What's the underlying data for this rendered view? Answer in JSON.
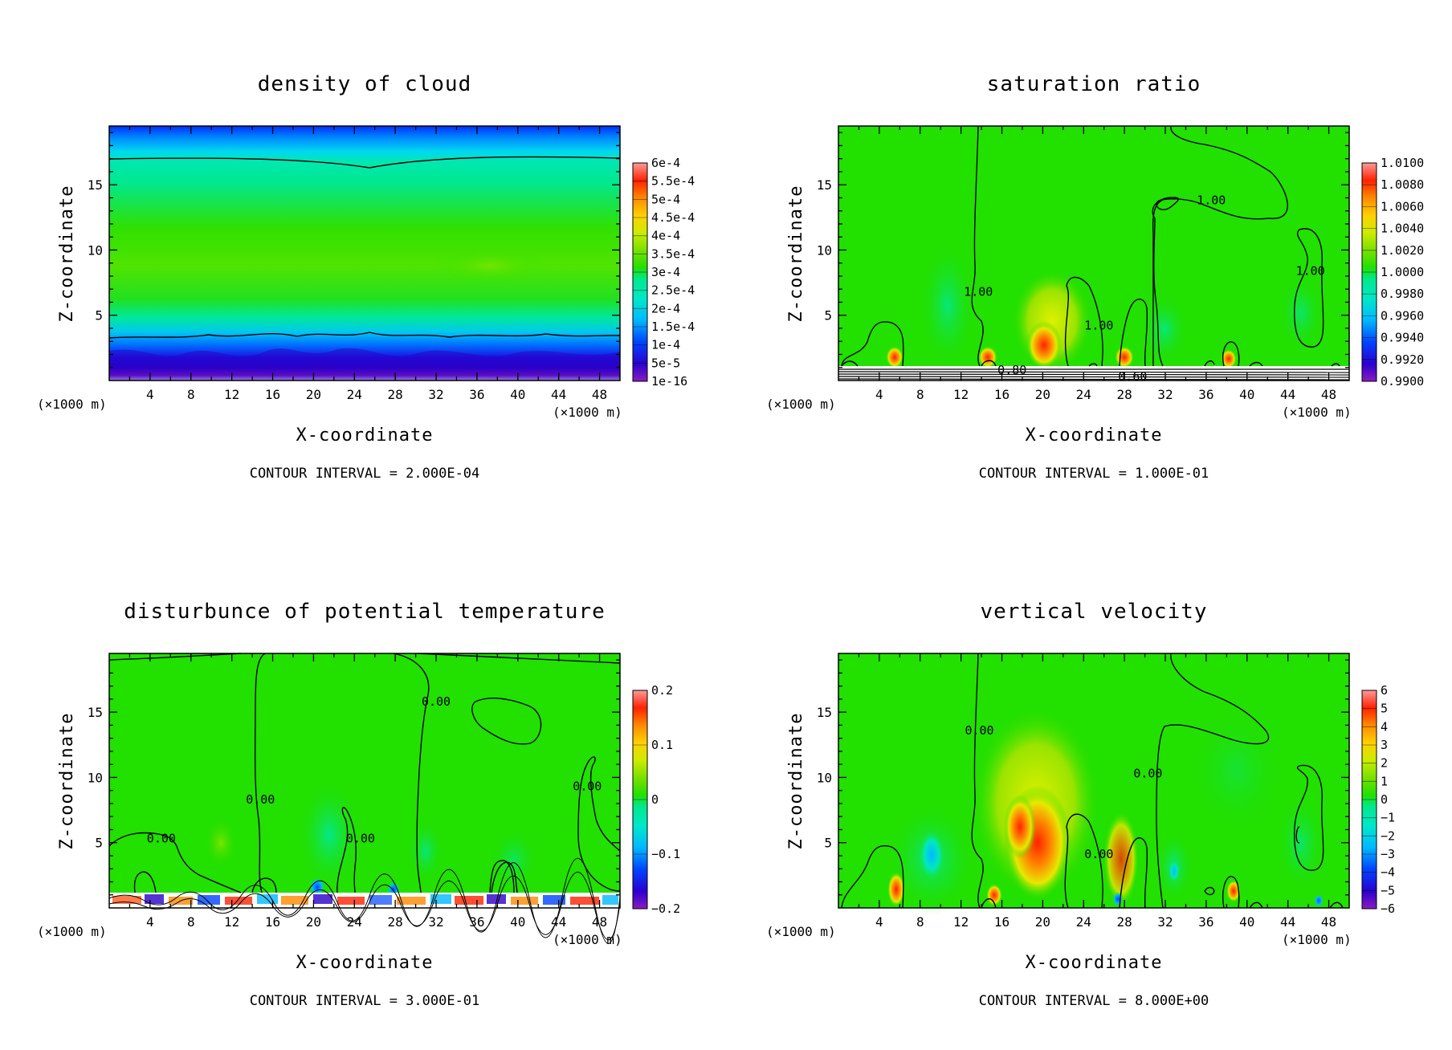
{
  "chart_data": [
    {
      "type": "heatmap",
      "title": "density of cloud",
      "xlabel": "X-coordinate",
      "ylabel": "Z-coordinate",
      "x_unit": "(×1000 m)",
      "z_unit": "(×1000 m)",
      "x_ticks": [
        "4",
        "8",
        "12",
        "16",
        "20",
        "24",
        "28",
        "32",
        "36",
        "40",
        "44",
        "48"
      ],
      "x_tick_values": [
        4,
        8,
        12,
        16,
        20,
        24,
        28,
        32,
        36,
        40,
        44,
        48
      ],
      "z_ticks": [
        "5",
        "10",
        "15"
      ],
      "z_tick_values": [
        5,
        10,
        15
      ],
      "xlim": [
        0,
        50
      ],
      "zlim": [
        0,
        19.5
      ],
      "contour_interval": "CONTOUR INTERVAL = 2.000E-04",
      "colorbar_labels": [
        "6e-4",
        "5.5e-4",
        "5e-4",
        "4.5e-4",
        "4e-4",
        "3.5e-4",
        "3e-4",
        "2.5e-4",
        "2e-4",
        "1.5e-4",
        "1e-4",
        "5e-5",
        "1e-16"
      ],
      "contour_labels": []
    },
    {
      "type": "heatmap",
      "title": "saturation ratio",
      "xlabel": "X-coordinate",
      "ylabel": "Z-coordinate",
      "x_unit": "(×1000 m)",
      "z_unit": "(×1000 m)",
      "x_ticks": [
        "4",
        "8",
        "12",
        "16",
        "20",
        "24",
        "28",
        "32",
        "36",
        "40",
        "44",
        "48"
      ],
      "x_tick_values": [
        4,
        8,
        12,
        16,
        20,
        24,
        28,
        32,
        36,
        40,
        44,
        48
      ],
      "z_ticks": [
        "5",
        "10",
        "15"
      ],
      "z_tick_values": [
        5,
        10,
        15
      ],
      "xlim": [
        0,
        50
      ],
      "zlim": [
        0,
        19.5
      ],
      "contour_interval": "CONTOUR INTERVAL = 1.000E-01",
      "colorbar_labels": [
        "1.0100",
        "1.0080",
        "1.0060",
        "1.0040",
        "1.0020",
        "1.0000",
        "0.9980",
        "0.9960",
        "0.9940",
        "0.9920",
        "0.9900"
      ],
      "contour_labels": [
        {
          "text": "1.00",
          "x": 36.5,
          "z": 13.5
        },
        {
          "text": "1.00",
          "x": 13.7,
          "z": 6.5
        },
        {
          "text": "1.00",
          "x": 25.5,
          "z": 3.9
        },
        {
          "text": "1.00",
          "x": 46.2,
          "z": 8.1
        },
        {
          "text": "0.80",
          "x": 17.0,
          "z": 0.5
        },
        {
          "text": "0.60",
          "x": 28.8,
          "z": 0.0
        }
      ]
    },
    {
      "type": "heatmap",
      "title": "disturbunce of potential temperature",
      "xlabel": "X-coordinate",
      "ylabel": "Z-coordinate",
      "x_unit": "(×1000 m)",
      "z_unit": "(×1000 m)",
      "x_ticks": [
        "4",
        "8",
        "12",
        "16",
        "20",
        "24",
        "28",
        "32",
        "36",
        "40",
        "44",
        "48"
      ],
      "x_tick_values": [
        4,
        8,
        12,
        16,
        20,
        24,
        28,
        32,
        36,
        40,
        44,
        48
      ],
      "z_ticks": [
        "5",
        "10",
        "15"
      ],
      "z_tick_values": [
        5,
        10,
        15
      ],
      "xlim": [
        0,
        50
      ],
      "zlim": [
        0,
        19.5
      ],
      "contour_interval": "CONTOUR INTERVAL = 3.000E-01",
      "colorbar_labels": [
        "0.2",
        "0.1",
        "0",
        "−0.1",
        "−0.2"
      ],
      "contour_labels": [
        {
          "text": "0.00",
          "x": 32.0,
          "z": 15.5
        },
        {
          "text": "0.00",
          "x": 14.8,
          "z": 8.0
        },
        {
          "text": "0.00",
          "x": 24.6,
          "z": 5.0
        },
        {
          "text": "0.00",
          "x": 5.1,
          "z": 5.0
        },
        {
          "text": "0.00",
          "x": 46.8,
          "z": 9.0
        }
      ]
    },
    {
      "type": "heatmap",
      "title": "vertical velocity",
      "xlabel": "X-coordinate",
      "ylabel": "Z-coordinate",
      "x_unit": "(×1000 m)",
      "z_unit": "(×1000 m)",
      "x_ticks": [
        "4",
        "8",
        "12",
        "16",
        "20",
        "24",
        "28",
        "32",
        "36",
        "40",
        "44",
        "48"
      ],
      "x_tick_values": [
        4,
        8,
        12,
        16,
        20,
        24,
        28,
        32,
        36,
        40,
        44,
        48
      ],
      "z_ticks": [
        "5",
        "10",
        "15"
      ],
      "z_tick_values": [
        5,
        10,
        15
      ],
      "xlim": [
        0,
        50
      ],
      "zlim": [
        0,
        19.5
      ],
      "contour_interval": "CONTOUR INTERVAL = 8.000E+00",
      "colorbar_labels": [
        "6",
        "5",
        "4",
        "3",
        "2",
        "1",
        "0",
        "−1",
        "−2",
        "−3",
        "−4",
        "−5",
        "−6"
      ],
      "contour_labels": [
        {
          "text": "0.00",
          "x": 13.8,
          "z": 13.3
        },
        {
          "text": "0.00",
          "x": 30.3,
          "z": 10.0
        },
        {
          "text": "0.00",
          "x": 25.5,
          "z": 3.8
        }
      ]
    }
  ]
}
